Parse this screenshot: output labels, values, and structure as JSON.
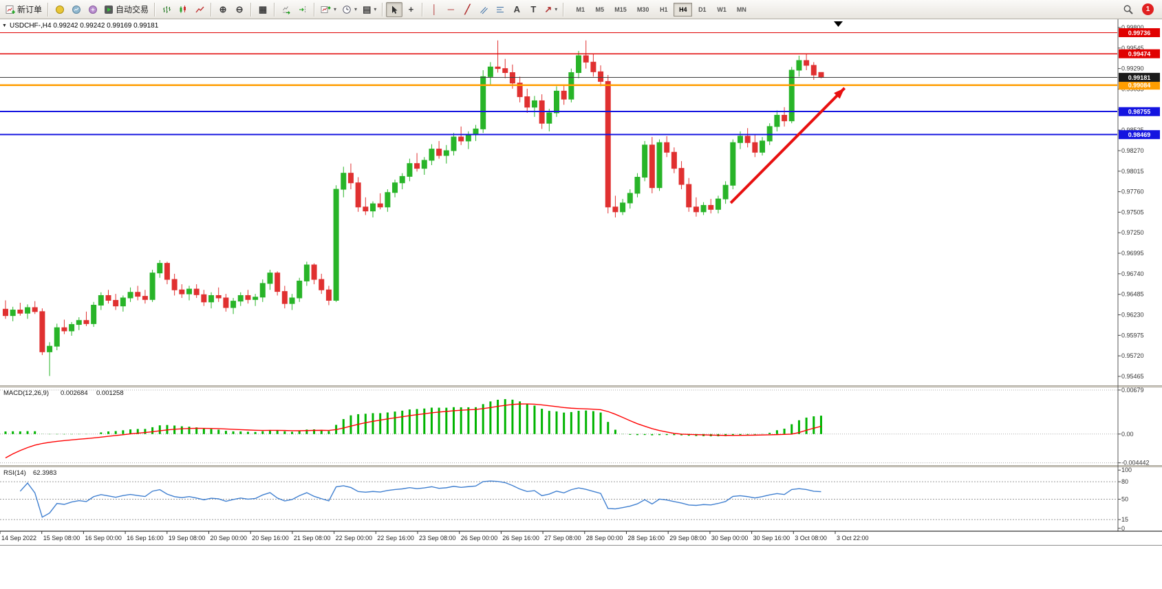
{
  "toolbar": {
    "new_order_label": "新订单",
    "autotrading_label": "自动交易",
    "timeframes": [
      "M1",
      "M5",
      "M15",
      "M30",
      "H1",
      "H4",
      "D1",
      "W1",
      "MN"
    ],
    "active_timeframe": "H4",
    "notification_count": "1",
    "icons": {
      "caret": "▾",
      "zoom_in": "⊕",
      "zoom_out": "⊖",
      "crosshair": "+",
      "vertical_line": "│",
      "horizontal_line": "─",
      "trendline": "╱",
      "text_tool": "A",
      "label_tool": "T",
      "arrow_tool": "↗",
      "tile_windows": "▦",
      "templates": "▤"
    }
  },
  "chart": {
    "symbol_period": "USDCHF-,H4",
    "open": "0.99242",
    "high": "0.99242",
    "low": "0.99169",
    "close": "0.99181"
  },
  "chart_data": {
    "type": "candlestick",
    "symbol": "USDCHF",
    "period": "H4",
    "price_ticks": [
      "0.99800",
      "0.99545",
      "0.99290",
      "0.99035",
      "0.98780",
      "0.98525",
      "0.98270",
      "0.98015",
      "0.97760",
      "0.97505",
      "0.97250",
      "0.96995",
      "0.96740",
      "0.96485",
      "0.96230",
      "0.95975",
      "0.95720",
      "0.95465"
    ],
    "time_labels": [
      "14 Sep 2022",
      "15 Sep 08:00",
      "16 Sep 00:00",
      "16 Sep 16:00",
      "19 Sep 08:00",
      "20 Sep 00:00",
      "20 Sep 16:00",
      "21 Sep 08:00",
      "22 Sep 00:00",
      "22 Sep 16:00",
      "23 Sep 08:00",
      "26 Sep 00:00",
      "26 Sep 16:00",
      "27 Sep 08:00",
      "28 Sep 00:00",
      "28 Sep 16:00",
      "29 Sep 08:00",
      "30 Sep 00:00",
      "30 Sep 16:00",
      "3 Oct 08:00",
      "3 Oct 22:00"
    ],
    "up_color": "#28b428",
    "down_color": "#e03030",
    "hlines": [
      {
        "price": 0.99736,
        "color": "#e00000",
        "width": 1.4,
        "label": "0.99736"
      },
      {
        "price": 0.99474,
        "color": "#e00000",
        "width": 1.4,
        "label": "0.99474"
      },
      {
        "price": 0.99084,
        "color": "#ff9d00",
        "width": 2.4,
        "label": "0.99084"
      },
      {
        "price": 0.98755,
        "color": "#1414e0",
        "width": 2.0,
        "label": "0.98755"
      },
      {
        "price": 0.98469,
        "color": "#1414e0",
        "width": 2.0,
        "label": "0.98469"
      }
    ],
    "current_price": {
      "price": 0.99181,
      "label": "0.99181",
      "line_color": "#3c3c3c",
      "badge_color": "#1a1a1a"
    },
    "trend_arrow": {
      "color": "#e81010",
      "from": {
        "bar": 98.7,
        "price": 0.9762
      },
      "to": {
        "bar": 114.2,
        "price": 0.99048
      }
    },
    "indicators": {
      "macd": {
        "name": "MACD(12,26,9)",
        "value_main": "0.002684",
        "value_signal": "0.001258",
        "scale_labels": [
          "0.00679",
          "0.00",
          "-0.004442"
        ],
        "scale_values": [
          0.00679,
          0,
          -0.004442
        ],
        "histogram_color": "#00b400",
        "signal_color": "#ff0000",
        "params": {
          "fast": 12,
          "slow": 26,
          "signal": 9
        }
      },
      "rsi": {
        "name": "RSI(14)",
        "value": "62.3983",
        "scale_labels": [
          "100",
          "80",
          "50",
          "15",
          "0"
        ],
        "scale_values": [
          100,
          80,
          50,
          15,
          0
        ],
        "levels": [
          80,
          50,
          15
        ],
        "line_color": "#3f7fd0",
        "period": 14
      }
    },
    "candles": [
      [
        0.963,
        0.9641,
        0.9618,
        0.9622
      ],
      [
        0.9622,
        0.9633,
        0.9615,
        0.9629
      ],
      [
        0.9629,
        0.9638,
        0.9622,
        0.9625
      ],
      [
        0.9625,
        0.9636,
        0.9618,
        0.9632
      ],
      [
        0.9632,
        0.964,
        0.9624,
        0.9627
      ],
      [
        0.9627,
        0.9631,
        0.9573,
        0.9577
      ],
      [
        0.9577,
        0.9589,
        0.9547,
        0.9584
      ],
      [
        0.9584,
        0.9612,
        0.9579,
        0.9607
      ],
      [
        0.9607,
        0.9617,
        0.9599,
        0.9603
      ],
      [
        0.9603,
        0.9614,
        0.9597,
        0.9611
      ],
      [
        0.9611,
        0.962,
        0.9604,
        0.9616
      ],
      [
        0.9616,
        0.9627,
        0.9609,
        0.9612
      ],
      [
        0.9612,
        0.9639,
        0.9608,
        0.9635
      ],
      [
        0.9635,
        0.9651,
        0.9629,
        0.9647
      ],
      [
        0.9647,
        0.9654,
        0.9637,
        0.9641
      ],
      [
        0.9641,
        0.9649,
        0.9629,
        0.9634
      ],
      [
        0.9634,
        0.9647,
        0.9627,
        0.9644
      ],
      [
        0.9644,
        0.9657,
        0.9639,
        0.9651
      ],
      [
        0.9651,
        0.9659,
        0.9641,
        0.9646
      ],
      [
        0.9646,
        0.9654,
        0.9637,
        0.9642
      ],
      [
        0.9642,
        0.9679,
        0.9639,
        0.9675
      ],
      [
        0.9675,
        0.9691,
        0.9669,
        0.9687
      ],
      [
        0.9687,
        0.9689,
        0.9661,
        0.9667
      ],
      [
        0.9667,
        0.9674,
        0.9647,
        0.9654
      ],
      [
        0.9654,
        0.9661,
        0.9644,
        0.9649
      ],
      [
        0.9649,
        0.9659,
        0.9641,
        0.9655
      ],
      [
        0.9655,
        0.9661,
        0.9644,
        0.9648
      ],
      [
        0.9648,
        0.9654,
        0.9634,
        0.9639
      ],
      [
        0.9639,
        0.9651,
        0.9631,
        0.9647
      ],
      [
        0.9647,
        0.9657,
        0.9639,
        0.9644
      ],
      [
        0.9644,
        0.9649,
        0.9627,
        0.9632
      ],
      [
        0.9632,
        0.9644,
        0.9624,
        0.964
      ],
      [
        0.964,
        0.9651,
        0.9634,
        0.9647
      ],
      [
        0.9647,
        0.9654,
        0.9637,
        0.9642
      ],
      [
        0.9642,
        0.9649,
        0.9634,
        0.9645
      ],
      [
        0.9645,
        0.9667,
        0.9639,
        0.9662
      ],
      [
        0.9662,
        0.9679,
        0.9654,
        0.9675
      ],
      [
        0.9675,
        0.9677,
        0.9647,
        0.9652
      ],
      [
        0.9652,
        0.9659,
        0.9631,
        0.9637
      ],
      [
        0.9637,
        0.9649,
        0.9629,
        0.9644
      ],
      [
        0.9644,
        0.9669,
        0.9639,
        0.9665
      ],
      [
        0.9665,
        0.9689,
        0.9659,
        0.9685
      ],
      [
        0.9685,
        0.9687,
        0.9661,
        0.9667
      ],
      [
        0.9667,
        0.9674,
        0.9649,
        0.9654
      ],
      [
        0.9654,
        0.9659,
        0.9635,
        0.9641
      ],
      [
        0.9641,
        0.9784,
        0.9639,
        0.9779
      ],
      [
        0.9779,
        0.9807,
        0.9769,
        0.9799
      ],
      [
        0.9799,
        0.9811,
        0.9779,
        0.9787
      ],
      [
        0.9787,
        0.9794,
        0.9751,
        0.9757
      ],
      [
        0.9757,
        0.9769,
        0.9747,
        0.9752
      ],
      [
        0.9752,
        0.9764,
        0.9744,
        0.9761
      ],
      [
        0.9761,
        0.9774,
        0.9754,
        0.9757
      ],
      [
        0.9757,
        0.9779,
        0.9751,
        0.9775
      ],
      [
        0.9775,
        0.9791,
        0.9769,
        0.9787
      ],
      [
        0.9787,
        0.9799,
        0.9779,
        0.9795
      ],
      [
        0.9795,
        0.9817,
        0.9789,
        0.9811
      ],
      [
        0.9811,
        0.9824,
        0.9801,
        0.9805
      ],
      [
        0.9805,
        0.9819,
        0.9797,
        0.9815
      ],
      [
        0.9815,
        0.9835,
        0.9809,
        0.9829
      ],
      [
        0.9829,
        0.9839,
        0.9817,
        0.9821
      ],
      [
        0.9821,
        0.9834,
        0.9811,
        0.9827
      ],
      [
        0.9827,
        0.9849,
        0.9821,
        0.9844
      ],
      [
        0.9844,
        0.9857,
        0.9834,
        0.9839
      ],
      [
        0.9839,
        0.9851,
        0.9829,
        0.9847
      ],
      [
        0.9847,
        0.9859,
        0.9839,
        0.9854
      ],
      [
        0.9854,
        0.9927,
        0.9849,
        0.9919
      ],
      [
        0.9919,
        0.9937,
        0.9909,
        0.9931
      ],
      [
        0.9931,
        0.9964,
        0.9924,
        0.9929
      ],
      [
        0.9929,
        0.9941,
        0.9917,
        0.9924
      ],
      [
        0.9924,
        0.9934,
        0.9904,
        0.9911
      ],
      [
        0.9911,
        0.9919,
        0.9887,
        0.9894
      ],
      [
        0.9894,
        0.9904,
        0.9874,
        0.9881
      ],
      [
        0.9881,
        0.9895,
        0.9869,
        0.9889
      ],
      [
        0.9889,
        0.9897,
        0.9854,
        0.9861
      ],
      [
        0.9861,
        0.9879,
        0.9851,
        0.9874
      ],
      [
        0.9874,
        0.9907,
        0.9869,
        0.9901
      ],
      [
        0.9901,
        0.9909,
        0.9884,
        0.9891
      ],
      [
        0.9891,
        0.9929,
        0.9887,
        0.9924
      ],
      [
        0.9924,
        0.9951,
        0.9917,
        0.9945
      ],
      [
        0.9945,
        0.9964,
        0.9929,
        0.9937
      ],
      [
        0.9937,
        0.9947,
        0.9919,
        0.9925
      ],
      [
        0.9925,
        0.9933,
        0.9907,
        0.9913
      ],
      [
        0.9913,
        0.9921,
        0.9749,
        0.9757
      ],
      [
        0.9757,
        0.9771,
        0.9744,
        0.9751
      ],
      [
        0.9751,
        0.9767,
        0.9747,
        0.9762
      ],
      [
        0.9762,
        0.9779,
        0.9755,
        0.9774
      ],
      [
        0.9774,
        0.9799,
        0.9769,
        0.9794
      ],
      [
        0.9794,
        0.9839,
        0.9789,
        0.9834
      ],
      [
        0.9834,
        0.9844,
        0.9774,
        0.9781
      ],
      [
        0.9781,
        0.9841,
        0.9777,
        0.9837
      ],
      [
        0.9837,
        0.9845,
        0.9819,
        0.9825
      ],
      [
        0.9825,
        0.9831,
        0.9799,
        0.9805
      ],
      [
        0.9805,
        0.9814,
        0.9779,
        0.9785
      ],
      [
        0.9785,
        0.9793,
        0.9751,
        0.9757
      ],
      [
        0.9757,
        0.9769,
        0.9745,
        0.9751
      ],
      [
        0.9751,
        0.9763,
        0.9747,
        0.9759
      ],
      [
        0.9759,
        0.9767,
        0.9749,
        0.9754
      ],
      [
        0.9754,
        0.9771,
        0.9749,
        0.9767
      ],
      [
        0.9767,
        0.9789,
        0.9761,
        0.9784
      ],
      [
        0.9784,
        0.9841,
        0.9779,
        0.9837
      ],
      [
        0.9837,
        0.9851,
        0.9829,
        0.9845
      ],
      [
        0.9845,
        0.9855,
        0.9831,
        0.9837
      ],
      [
        0.9837,
        0.9847,
        0.9819,
        0.9825
      ],
      [
        0.9825,
        0.9844,
        0.9821,
        0.9839
      ],
      [
        0.9839,
        0.9861,
        0.9834,
        0.9857
      ],
      [
        0.9857,
        0.9877,
        0.9851,
        0.9871
      ],
      [
        0.9871,
        0.9881,
        0.9857,
        0.9864
      ],
      [
        0.9864,
        0.9931,
        0.9861,
        0.9927
      ],
      [
        0.9927,
        0.9945,
        0.9919,
        0.9939
      ],
      [
        0.9939,
        0.9947,
        0.9927,
        0.9933
      ],
      [
        0.9933,
        0.9937,
        0.9915,
        0.9921
      ],
      [
        0.99242,
        0.99242,
        0.99169,
        0.99181
      ]
    ]
  }
}
